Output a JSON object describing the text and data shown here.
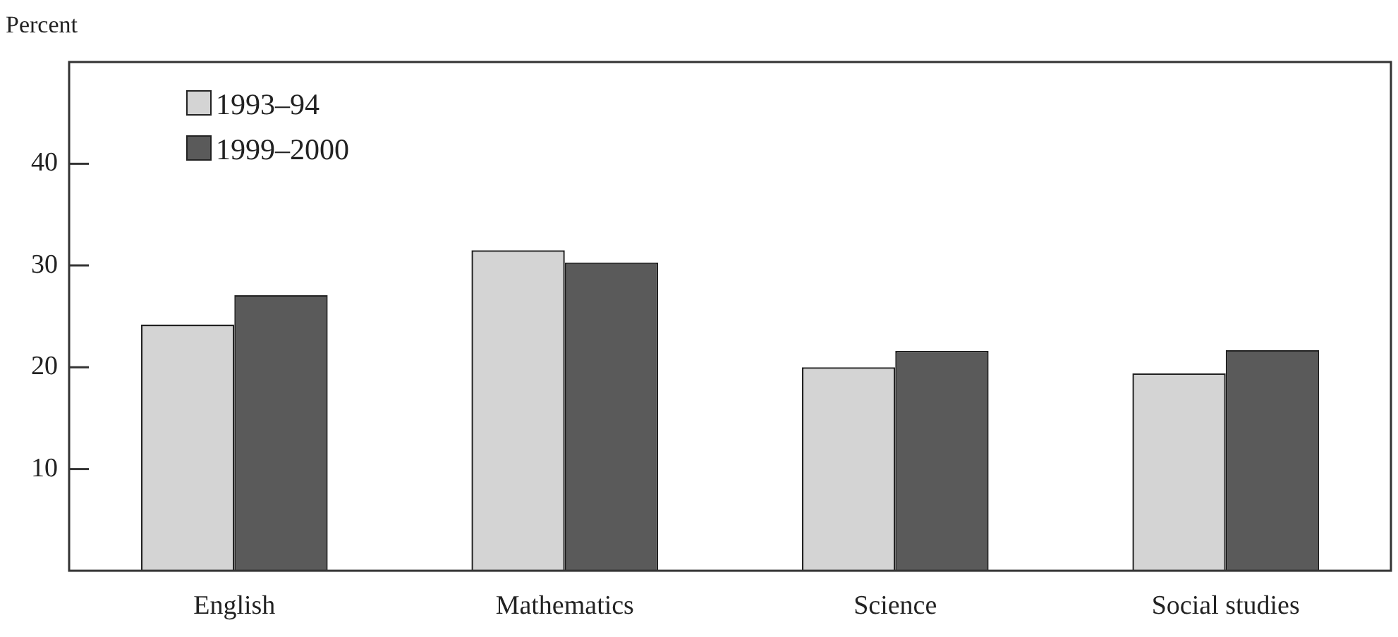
{
  "chart_data": {
    "type": "bar",
    "ylabel": "Percent",
    "categories": [
      "English",
      "Mathematics",
      "Science",
      "Social studies"
    ],
    "series": [
      {
        "name": "1993–94",
        "color": "#d4d4d4",
        "values": [
          24.2,
          31.5,
          20.0,
          19.4
        ]
      },
      {
        "name": "1999–2000",
        "color": "#5a5a5a",
        "values": [
          27.1,
          30.3,
          21.6,
          21.7
        ]
      }
    ],
    "ylim": [
      0,
      50
    ],
    "yticks": [
      10,
      20,
      30,
      40
    ],
    "grid": false,
    "legend": "top left"
  }
}
